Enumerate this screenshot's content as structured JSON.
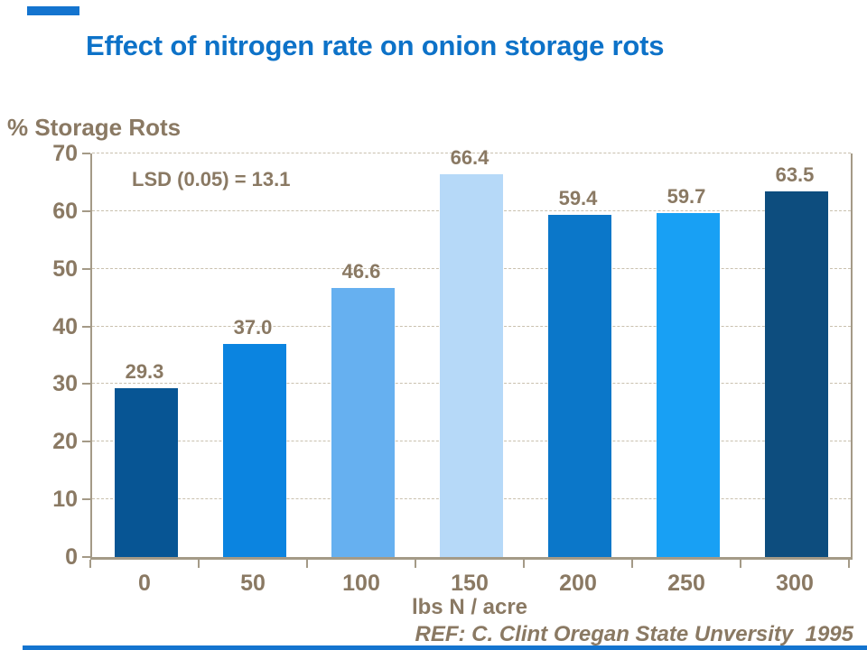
{
  "slide": {
    "title": "Effect of nitrogen rate on onion storage rots",
    "reference": "REF: C. Clint Oregan State Unversity  1995"
  },
  "colors": {
    "title_blue": "#0d72c8",
    "accent_blue": "#1474cf",
    "text_brown": "#8a7963",
    "axis_line": "#a49a87",
    "gridline": "#c9c0ae"
  },
  "chart_data": {
    "type": "bar",
    "title": "Effect of nitrogen rate on onion storage rots",
    "xlabel": "lbs N / acre",
    "ylabel": "% Storage Rots",
    "categories": [
      "0",
      "50",
      "100",
      "150",
      "200",
      "250",
      "300"
    ],
    "values": [
      29.3,
      37.0,
      46.6,
      66.4,
      59.4,
      59.7,
      63.5
    ],
    "value_labels": [
      "29.3",
      "37.0",
      "46.6",
      "66.4",
      "59.4",
      "59.7",
      "63.5"
    ],
    "bar_colors": [
      "#075594",
      "#0b84e0",
      "#66b0f0",
      "#b6d9f8",
      "#0b77c9",
      "#18a0f4",
      "#0d4d7e"
    ],
    "ylim": [
      0,
      70
    ],
    "ytick_interval": 10,
    "yticks": [
      "0",
      "10",
      "20",
      "30",
      "40",
      "50",
      "60",
      "70"
    ],
    "annotation": "LSD (0.05) = 13.1",
    "grid": "horizontal-dashed",
    "legend": "none"
  }
}
